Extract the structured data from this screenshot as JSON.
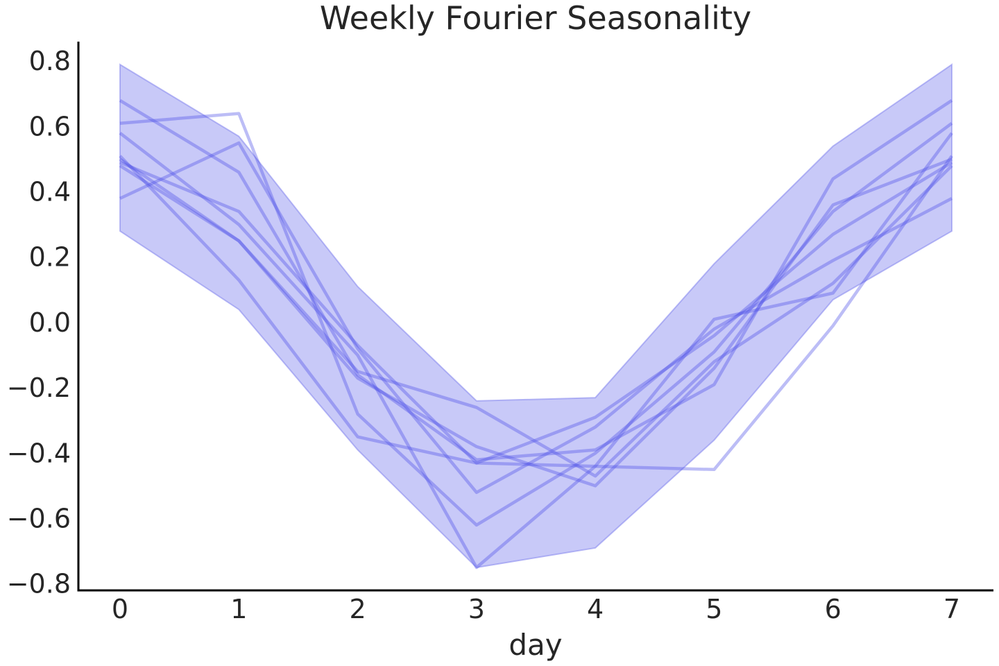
{
  "chart_data": {
    "type": "line",
    "title": "Weekly Fourier Seasonality",
    "xlabel": "day",
    "ylabel": "",
    "xlim": [
      -0.35,
      7.35
    ],
    "ylim": [
      -0.82,
      0.86
    ],
    "x": [
      0,
      1,
      2,
      3,
      4,
      5,
      6,
      7
    ],
    "xticks": [
      "0",
      "1",
      "2",
      "3",
      "4",
      "5",
      "6",
      "7"
    ],
    "yticks": [
      -0.8,
      -0.6,
      -0.4,
      -0.2,
      0.0,
      0.2,
      0.4,
      0.6,
      0.8
    ],
    "ytick_labels": [
      "−0.8",
      "−0.6",
      "−0.4",
      "−0.2",
      "0.0",
      "0.2",
      "0.4",
      "0.6",
      "0.8"
    ],
    "grid": false,
    "colors": {
      "line": "#4f52e8",
      "band": "#8c8ff0",
      "band_edge": "#6e70ea",
      "axis": "#000000",
      "text": "#262626"
    },
    "band": {
      "upper": [
        0.79,
        0.57,
        0.11,
        -0.24,
        -0.23,
        0.18,
        0.54,
        0.79
      ],
      "lower": [
        0.28,
        0.04,
        -0.39,
        -0.75,
        -0.69,
        -0.36,
        0.07,
        0.28
      ]
    },
    "series": [
      {
        "values": [
          0.68,
          0.46,
          -0.16,
          -0.42,
          -0.39,
          -0.19,
          0.44,
          0.68
        ]
      },
      {
        "values": [
          0.61,
          0.64,
          -0.28,
          -0.62,
          -0.4,
          -0.09,
          0.34,
          0.61
        ]
      },
      {
        "values": [
          0.58,
          0.3,
          -0.1,
          -0.75,
          -0.44,
          0.01,
          0.09,
          0.58
        ]
      },
      {
        "values": [
          0.51,
          0.13,
          -0.35,
          -0.43,
          -0.44,
          -0.45,
          -0.01,
          0.51
        ]
      },
      {
        "values": [
          0.5,
          0.25,
          -0.17,
          -0.38,
          -0.5,
          -0.14,
          0.36,
          0.5
        ]
      },
      {
        "values": [
          0.49,
          0.34,
          -0.07,
          -0.43,
          -0.29,
          -0.04,
          0.27,
          0.49
        ]
      },
      {
        "values": [
          0.48,
          0.25,
          -0.15,
          -0.26,
          -0.47,
          -0.12,
          0.12,
          0.48
        ]
      },
      {
        "values": [
          0.38,
          0.55,
          -0.08,
          -0.52,
          -0.32,
          -0.02,
          0.19,
          0.38
        ]
      }
    ]
  }
}
